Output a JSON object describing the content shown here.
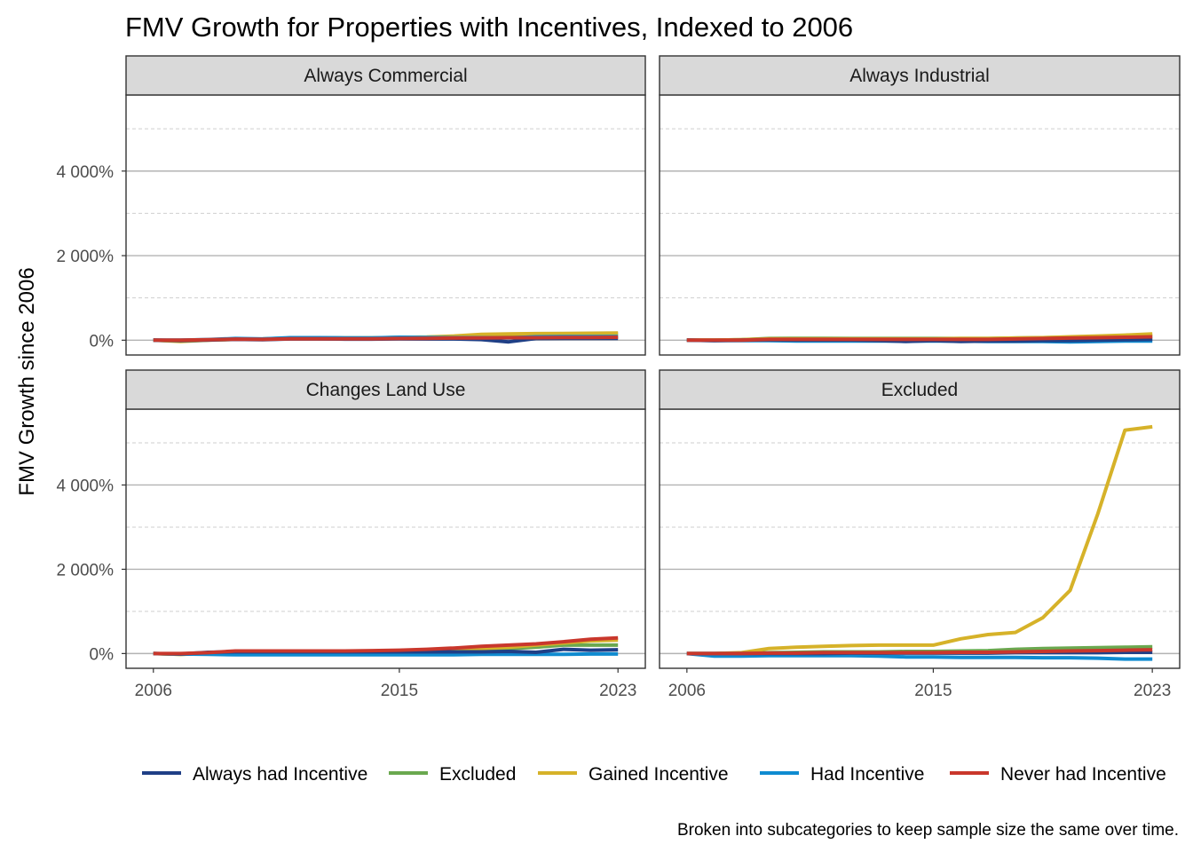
{
  "chart_data": {
    "type": "line",
    "title": "FMV Growth for Properties with Incentives, Indexed to 2006",
    "ylabel": "FMV Growth since 2006",
    "xlabel": "",
    "caption": "Broken into subcategories to keep sample size the same over time.",
    "x_ticks": [
      2006,
      2015,
      2023
    ],
    "y_ticks": [
      0,
      2000,
      4000
    ],
    "y_tick_labels": [
      "0%",
      "2 000%",
      "4 000%"
    ],
    "xlim": [
      2005,
      2024
    ],
    "ylim": [
      -350,
      5800
    ],
    "grid": true,
    "legend_position": "bottom",
    "series_meta": [
      {
        "name": "Always had Incentive",
        "color": "#1f3f86"
      },
      {
        "name": "Excluded",
        "color": "#6aa84f"
      },
      {
        "name": "Gained Incentive",
        "color": "#d6b229"
      },
      {
        "name": "Had Incentive",
        "color": "#0f8bd0"
      },
      {
        "name": "Never had Incentive",
        "color": "#c9372c"
      }
    ],
    "x": [
      2006,
      2007,
      2008,
      2009,
      2010,
      2011,
      2012,
      2013,
      2014,
      2015,
      2016,
      2017,
      2018,
      2019,
      2020,
      2021,
      2022,
      2023
    ],
    "panels": [
      {
        "title": "Always Commercial",
        "series": [
          {
            "name": "Always had Incentive",
            "values": [
              0,
              -10,
              5,
              20,
              10,
              30,
              30,
              25,
              25,
              35,
              30,
              30,
              15,
              -40,
              40,
              45,
              45,
              45
            ]
          },
          {
            "name": "Excluded",
            "values": [
              0,
              -20,
              5,
              25,
              30,
              50,
              55,
              55,
              55,
              65,
              70,
              85,
              120,
              130,
              130,
              130,
              140,
              145
            ]
          },
          {
            "name": "Gained Incentive",
            "values": [
              0,
              -30,
              0,
              20,
              25,
              45,
              45,
              45,
              50,
              65,
              75,
              100,
              140,
              150,
              155,
              160,
              165,
              170
            ]
          },
          {
            "name": "Had Incentive",
            "values": [
              0,
              0,
              15,
              40,
              30,
              60,
              60,
              55,
              55,
              70,
              65,
              60,
              60,
              55,
              80,
              85,
              85,
              85
            ]
          },
          {
            "name": "Never had Incentive",
            "values": [
              0,
              0,
              10,
              25,
              20,
              35,
              35,
              35,
              35,
              40,
              45,
              50,
              55,
              60,
              60,
              65,
              65,
              70
            ]
          }
        ]
      },
      {
        "title": "Always Industrial",
        "series": [
          {
            "name": "Always had Incentive",
            "values": [
              0,
              -10,
              0,
              10,
              5,
              5,
              5,
              -10,
              -30,
              -10,
              -30,
              -20,
              -20,
              -10,
              -10,
              0,
              10,
              20
            ]
          },
          {
            "name": "Excluded",
            "values": [
              0,
              0,
              10,
              40,
              45,
              45,
              40,
              40,
              40,
              40,
              40,
              40,
              50,
              60,
              70,
              80,
              90,
              100
            ]
          },
          {
            "name": "Gained Incentive",
            "values": [
              0,
              0,
              10,
              30,
              30,
              30,
              30,
              30,
              30,
              30,
              40,
              40,
              50,
              60,
              80,
              100,
              120,
              150
            ]
          },
          {
            "name": "Had Incentive",
            "values": [
              0,
              -10,
              -10,
              -10,
              -20,
              -20,
              -20,
              -20,
              -20,
              -20,
              -20,
              -30,
              -30,
              -30,
              -40,
              -30,
              -20,
              -20
            ]
          },
          {
            "name": "Never had Incentive",
            "values": [
              0,
              0,
              0,
              20,
              20,
              20,
              20,
              20,
              20,
              20,
              20,
              20,
              30,
              40,
              50,
              60,
              70,
              80
            ]
          }
        ]
      },
      {
        "title": "Changes Land Use",
        "series": [
          {
            "name": "Always had Incentive",
            "values": [
              0,
              -10,
              30,
              40,
              40,
              40,
              40,
              40,
              40,
              40,
              40,
              40,
              40,
              50,
              30,
              100,
              80,
              90
            ]
          },
          {
            "name": "Excluded",
            "values": [
              0,
              -20,
              0,
              10,
              10,
              10,
              10,
              10,
              10,
              20,
              30,
              50,
              80,
              120,
              150,
              200,
              200,
              200
            ]
          },
          {
            "name": "Gained Incentive",
            "values": [
              0,
              -20,
              10,
              20,
              20,
              20,
              20,
              20,
              30,
              40,
              60,
              80,
              120,
              150,
              200,
              250,
              300,
              320
            ]
          },
          {
            "name": "Had Incentive",
            "values": [
              0,
              -10,
              -20,
              -30,
              -30,
              -30,
              -30,
              -30,
              -30,
              -30,
              -30,
              -30,
              -20,
              -20,
              -20,
              -20,
              -10,
              -10
            ]
          },
          {
            "name": "Never had Incentive",
            "values": [
              0,
              0,
              20,
              60,
              60,
              60,
              60,
              60,
              70,
              80,
              100,
              130,
              170,
              200,
              230,
              280,
              340,
              370
            ]
          }
        ]
      },
      {
        "title": "Excluded",
        "series": [
          {
            "name": "Always had Incentive",
            "values": [
              0,
              0,
              0,
              0,
              0,
              0,
              10,
              10,
              10,
              10,
              10,
              10,
              20,
              20,
              20,
              20,
              30,
              30
            ]
          },
          {
            "name": "Excluded",
            "values": [
              0,
              0,
              10,
              20,
              30,
              40,
              40,
              40,
              50,
              50,
              60,
              70,
              100,
              120,
              130,
              140,
              150,
              160
            ]
          },
          {
            "name": "Gained Incentive",
            "values": [
              0,
              0,
              20,
              120,
              150,
              170,
              190,
              200,
              200,
              200,
              350,
              450,
              500,
              850,
              1500,
              3300,
              5300,
              5380
            ]
          },
          {
            "name": "Had Incentive",
            "values": [
              0,
              -60,
              -60,
              -50,
              -50,
              -50,
              -50,
              -60,
              -80,
              -80,
              -90,
              -90,
              -90,
              -100,
              -100,
              -110,
              -130,
              -130
            ]
          },
          {
            "name": "Never had Incentive",
            "values": [
              0,
              0,
              0,
              10,
              10,
              20,
              20,
              20,
              20,
              20,
              30,
              30,
              40,
              50,
              60,
              70,
              80,
              90
            ]
          }
        ]
      }
    ]
  }
}
